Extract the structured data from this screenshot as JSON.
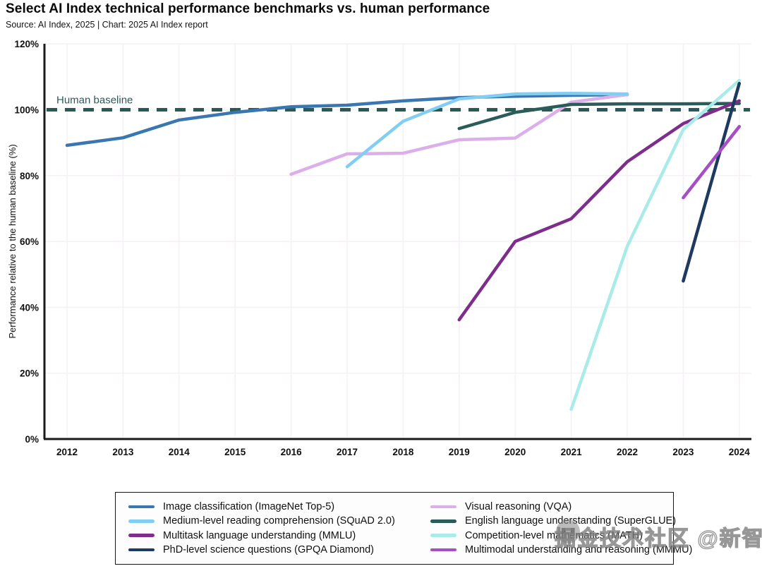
{
  "title": "Select AI Index technical performance benchmarks vs. human performance",
  "source": "Source: AI Index, 2025 | Chart: 2025 AI Index report",
  "watermark": "掘金技术社区 @新智元",
  "chart_data": {
    "type": "line",
    "title": "Select AI Index technical performance benchmarks vs. human performance",
    "xlabel": "",
    "ylabel": "Performance relative to the human baseline (%)",
    "ylim": [
      0,
      120
    ],
    "xlim": [
      2012,
      2024
    ],
    "yticks": [
      0,
      20,
      40,
      60,
      80,
      100,
      120
    ],
    "ytick_labels": [
      "0%",
      "20%",
      "40%",
      "60%",
      "80%",
      "100%",
      "120%"
    ],
    "xticks": [
      2012,
      2013,
      2014,
      2015,
      2016,
      2017,
      2018,
      2019,
      2020,
      2021,
      2022,
      2023,
      2024
    ],
    "grid": true,
    "legend_position": "bottom",
    "baseline": {
      "label": "Human baseline",
      "value": 100,
      "color": "#2a5a57"
    },
    "series": [
      {
        "id": "imagenet",
        "name": "Image classification (ImageNet Top-5)",
        "color": "#3a76b0",
        "x": [
          2012,
          2013,
          2014,
          2015,
          2016,
          2017,
          2018,
          2019,
          2020,
          2021,
          2022
        ],
        "y": [
          89.2,
          91.5,
          96.9,
          99.2,
          100.9,
          101.4,
          102.7,
          103.7,
          104.1,
          104.4,
          104.6
        ]
      },
      {
        "id": "vqa",
        "name": "Visual reasoning (VQA)",
        "color": "#dcaeea",
        "x": [
          2016,
          2017,
          2018,
          2019,
          2020,
          2021,
          2022
        ],
        "y": [
          80.4,
          86.6,
          86.8,
          90.9,
          91.4,
          102.3,
          104.6
        ]
      },
      {
        "id": "squad",
        "name": "Medium-level reading comprehension (SQuAD 2.0)",
        "color": "#82cdf2",
        "x": [
          2017,
          2018,
          2019,
          2020,
          2021,
          2022
        ],
        "y": [
          82.7,
          96.5,
          103.3,
          104.8,
          105.0,
          104.8
        ]
      },
      {
        "id": "superglue",
        "name": "English language understanding (SuperGLUE)",
        "color": "#2a5c59",
        "x": [
          2019,
          2020,
          2021,
          2022,
          2023,
          2024
        ],
        "y": [
          94.3,
          99.2,
          101.6,
          101.8,
          101.8,
          101.9
        ]
      },
      {
        "id": "mmlu",
        "name": "Multitask language understanding (MMLU)",
        "color": "#7e2d8c",
        "x": [
          2019,
          2020,
          2021,
          2022,
          2023,
          2024
        ],
        "y": [
          36.2,
          60.0,
          66.9,
          84.2,
          95.8,
          102.7
        ]
      },
      {
        "id": "math",
        "name": "Competition-level mathematics (MATH)",
        "color": "#a9ebe8",
        "x": [
          2021,
          2022,
          2023,
          2024
        ],
        "y": [
          9.0,
          58.5,
          94.0,
          108.9
        ]
      },
      {
        "id": "gpqa",
        "name": "PhD-level science questions (GPQA Diamond)",
        "color": "#1e3a60",
        "x": [
          2023,
          2024
        ],
        "y": [
          48.0,
          108.0
        ]
      },
      {
        "id": "mmmu",
        "name": "Multimodal understanding and reasoning (MMMU)",
        "color": "#a54ec6",
        "x": [
          2023,
          2024
        ],
        "y": [
          73.3,
          94.9
        ]
      }
    ],
    "legend_columns": {
      "left": [
        "imagenet",
        "squad",
        "mmlu",
        "gpqa"
      ],
      "right": [
        "vqa",
        "superglue",
        "math",
        "mmmu"
      ]
    }
  }
}
